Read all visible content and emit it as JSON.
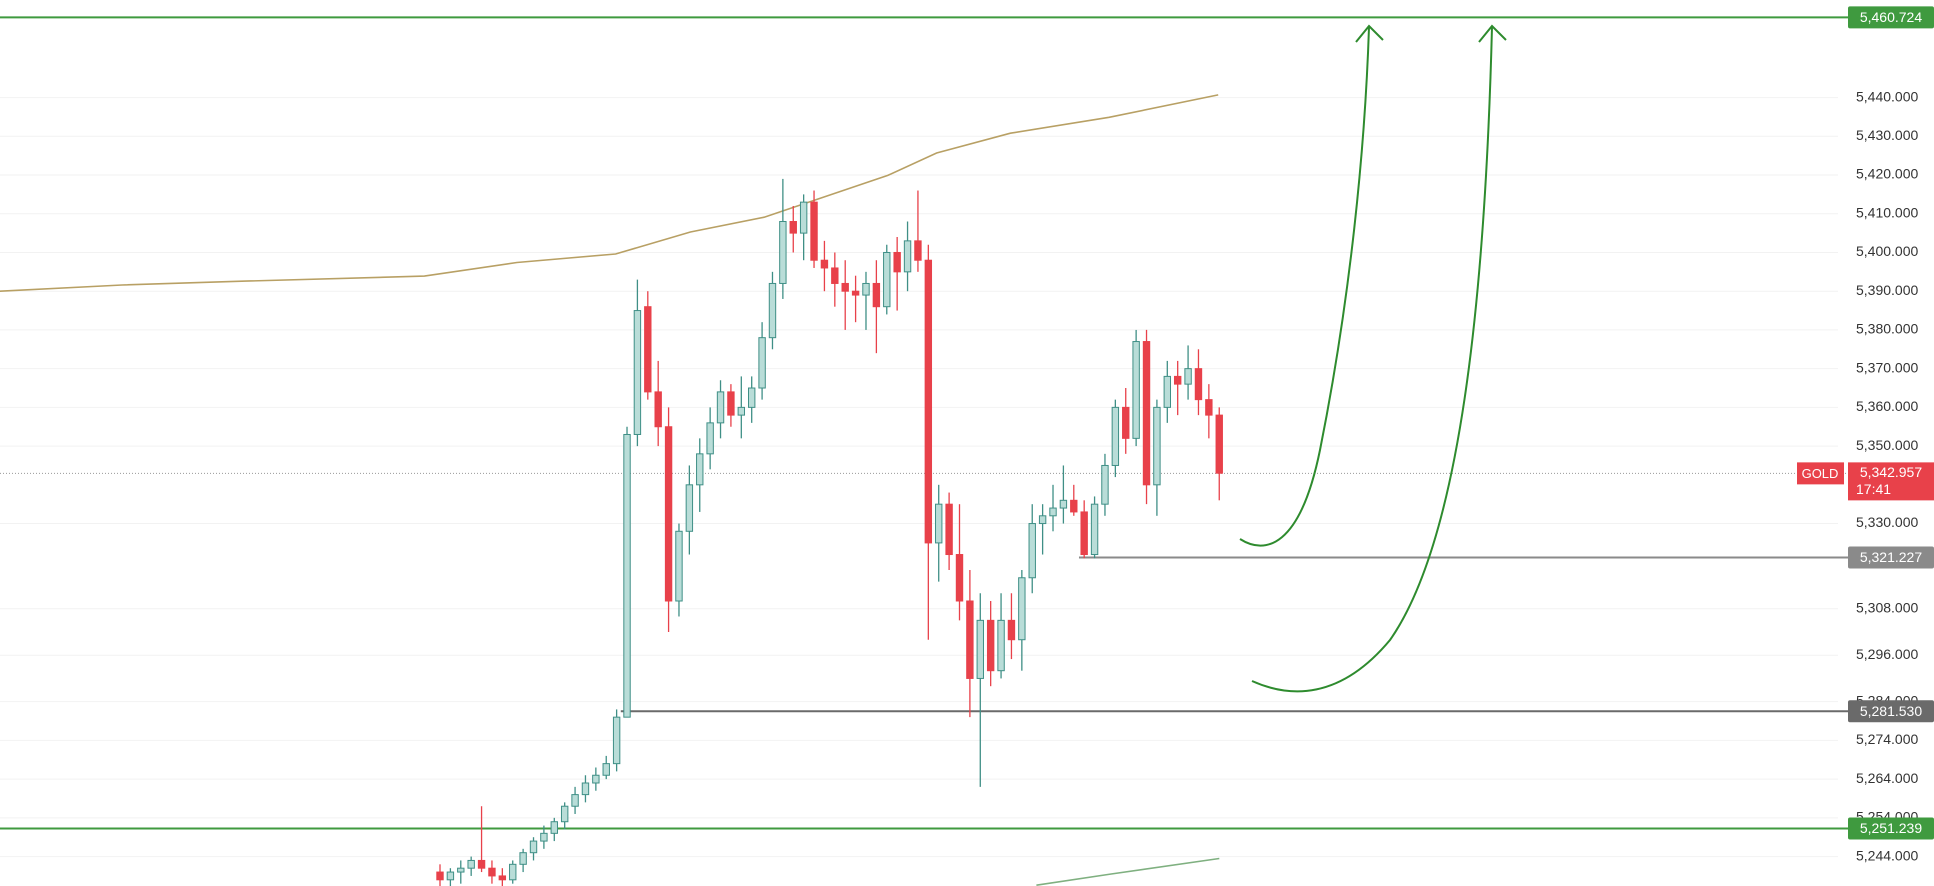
{
  "chart_data": {
    "type": "candlestick",
    "open": [
      5240,
      5238,
      5240,
      5241,
      5243,
      5241,
      5239,
      5238,
      5242,
      5245,
      5248,
      5250,
      5253,
      5257,
      5260,
      5263,
      5265,
      5268,
      5280,
      5353,
      5386,
      5364,
      5355,
      5310,
      5328,
      5340,
      5348,
      5356,
      5364,
      5358,
      5360,
      5365,
      5378,
      5392,
      5408,
      5405,
      5413,
      5398,
      5396,
      5392,
      5390,
      5389,
      5392,
      5386,
      5400,
      5395,
      5403,
      5398,
      5325,
      5335,
      5322,
      5310,
      5290,
      5305,
      5292,
      5305,
      5300,
      5316,
      5330,
      5332,
      5334,
      5336,
      5333,
      5322,
      5335,
      5345,
      5360,
      5352,
      5377,
      5340,
      5360,
      5368,
      5366,
      5370,
      5362,
      5358
    ],
    "high": [
      5242,
      5241,
      5243,
      5244,
      5257,
      5243,
      5241,
      5243,
      5246,
      5249,
      5252,
      5254,
      5258,
      5262,
      5265,
      5267,
      5270,
      5282,
      5355,
      5393,
      5390,
      5372,
      5360,
      5330,
      5345,
      5352,
      5360,
      5367,
      5366,
      5368,
      5368,
      5382,
      5395,
      5419,
      5412,
      5415,
      5416,
      5403,
      5400,
      5398,
      5394,
      5395,
      5398,
      5402,
      5404,
      5408,
      5416,
      5402,
      5340,
      5338,
      5335,
      5318,
      5312,
      5310,
      5312,
      5312,
      5318,
      5335,
      5335,
      5340,
      5345,
      5340,
      5336,
      5337,
      5348,
      5362,
      5365,
      5380,
      5380,
      5362,
      5372,
      5372,
      5376,
      5375,
      5366,
      5360
    ],
    "low": [
      5236,
      5236,
      5237,
      5239,
      5240,
      5237,
      5236,
      5237,
      5240,
      5243,
      5246,
      5248,
      5251,
      5255,
      5258,
      5261,
      5264,
      5266,
      5280,
      5350,
      5362,
      5350,
      5302,
      5306,
      5322,
      5333,
      5344,
      5352,
      5355,
      5352,
      5356,
      5362,
      5375,
      5388,
      5400,
      5398,
      5396,
      5390,
      5386,
      5380,
      5382,
      5380,
      5374,
      5384,
      5385,
      5390,
      5395,
      5300,
      5315,
      5318,
      5305,
      5280,
      5262,
      5288,
      5290,
      5295,
      5292,
      5312,
      5322,
      5328,
      5330,
      5332,
      5321,
      5321,
      5332,
      5342,
      5348,
      5350,
      5335,
      5332,
      5356,
      5358,
      5362,
      5358,
      5352,
      5336
    ],
    "close": [
      5238,
      5240,
      5241,
      5243,
      5241,
      5239,
      5238,
      5242,
      5245,
      5248,
      5250,
      5253,
      5257,
      5260,
      5263,
      5265,
      5268,
      5280,
      5353,
      5385,
      5364,
      5355,
      5310,
      5328,
      5340,
      5348,
      5356,
      5364,
      5358,
      5360,
      5365,
      5378,
      5392,
      5408,
      5405,
      5413,
      5398,
      5396,
      5392,
      5390,
      5389,
      5392,
      5386,
      5400,
      5395,
      5403,
      5398,
      5325,
      5335,
      5322,
      5310,
      5290,
      5305,
      5292,
      5305,
      5300,
      5316,
      5330,
      5332,
      5334,
      5336,
      5333,
      5322,
      5335,
      5345,
      5360,
      5352,
      5377,
      5340,
      5360,
      5368,
      5366,
      5370,
      5362,
      5358,
      5343
    ],
    "up_color": "#3f8f86",
    "down_color": "#e8414a",
    "ylim": [
      5236.4,
      5465.2
    ],
    "yticks": [
      {
        "value": 5440,
        "label": "5,440.000"
      },
      {
        "value": 5430,
        "label": "5,430.000"
      },
      {
        "value": 5420,
        "label": "5,420.000"
      },
      {
        "value": 5410,
        "label": "5,410.000"
      },
      {
        "value": 5400,
        "label": "5,400.000"
      },
      {
        "value": 5390,
        "label": "5,390.000"
      },
      {
        "value": 5380,
        "label": "5,380.000"
      },
      {
        "value": 5370,
        "label": "5,370.000"
      },
      {
        "value": 5360,
        "label": "5,360.000"
      },
      {
        "value": 5350,
        "label": "5,350.000"
      },
      {
        "value": 5330,
        "label": "5,330.000"
      },
      {
        "value": 5308,
        "label": "5,308.000"
      },
      {
        "value": 5296,
        "label": "5,296.000"
      },
      {
        "value": 5284,
        "label": "5,284.000"
      },
      {
        "value": 5274,
        "label": "5,274.000"
      },
      {
        "value": 5264,
        "label": "5,264.000"
      },
      {
        "value": 5254,
        "label": "5,254.000"
      },
      {
        "value": 5244,
        "label": "5,244.000"
      }
    ],
    "grid": true,
    "lines": [
      {
        "color": "#b8a064",
        "x": [
          -42.4,
          -30.6,
          -18.7,
          -1.5,
          7.4,
          16.9,
          24.1,
          31.2,
          43.1,
          47.8,
          54.9,
          64.4,
          74.9
        ],
        "values": [
          5390.0,
          5391.6,
          5392.6,
          5393.9,
          5397.4,
          5399.6,
          5405.3,
          5409.1,
          5419.9,
          5425.7,
          5430.8,
          5434.9,
          5440.7
        ]
      },
      {
        "color": "#7fb080",
        "x": [
          57.4,
          64.6,
          75.0
        ],
        "values": [
          5236.6,
          5239.5,
          5243.5
        ]
      }
    ],
    "levels": [
      {
        "value": 5460.724,
        "label": "5,460.724",
        "color": "#3f9a3f"
      },
      {
        "value": 5251.239,
        "label": "5,251.239",
        "color": "#3f9a3f"
      },
      {
        "value": 5321.227,
        "label": "5,321.227",
        "color": "#8a8a8a",
        "x": 61.5
      },
      {
        "value": 5281.53,
        "label": "5,281.530",
        "color": "#6a6a6a",
        "x": 17.4
      }
    ],
    "last": {
      "value": 5342.957,
      "label": "5,342.957",
      "symbol": "GOLD",
      "countdown": "17:41",
      "color": "#e8414a"
    }
  }
}
